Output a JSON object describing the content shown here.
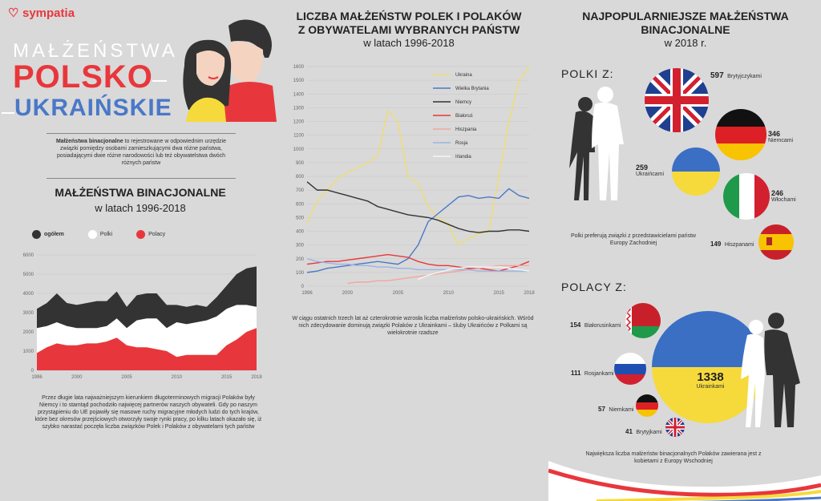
{
  "brand": {
    "name": "sympatia"
  },
  "header": {
    "line1": "MAŁŻEŃSTWA",
    "line2": "POLSKO",
    "line3": "UKRAIŃSKIE"
  },
  "definition": {
    "bold": "Małżeństwa binacjonalne",
    "rest": " to rejestrowane w odpowiednim urzędzie związki pomiędzy osobami zamieszkującymi dwa różne państwa, posiadającymi dwie różne narodowości lub też obywatelstwa dwóch różnych państw"
  },
  "left_section": {
    "title": "MAŁŻEŃSTWA BINACJONALNE",
    "subtitle": "w latach 1996-2018",
    "note": "Przez długie lata najważniejszym kierunkiem długoterminowych migracji Polaków były Niemcy i to stamtąd pochodziło najwięcej partnerów naszych obywateli. Gdy po naszym przystąpieniu do UE pojawiły się masowe ruchy migracyjne młodych ludzi do tych krajów, które bez okresów przejściowych otworzyły swoje rynki pracy, po kilku latach okazało się, iż szybko narastać poczęła liczba związków Polek i Polaków z obywatelami tych państw"
  },
  "middle_section": {
    "title1": "LICZBA MAŁŻEŃSTW POLEK I POLAKÓW",
    "title2": "Z OBYWATELAMI WYBRANYCH PAŃSTW",
    "subtitle": "w latach 1996-2018",
    "note": "W ciągu ostatnich trzech lat aż czterokrotnie wzrosła liczba małżeństw polsko-ukraińskich. Wśród nich zdecydowanie dominują związki Polaków z Ukrainkami – śluby Ukraińców z Polkami są wielokrotnie rzadsze"
  },
  "right_section": {
    "title1": "NAJPOPULARNIEJSZE MAŁŻEŃSTWA",
    "title2": "BINACJONALNE",
    "subtitle": "w 2018 r.",
    "polki_heading": "POLKI Z:",
    "polki_note": "Polki preferują związki z przedstawicielami państw Europy Zachodniej",
    "polacy_heading": "POLACY Z:",
    "polacy_note": "Największa liczba małżeństw binacjonalnych Polaków zawierana jest z kobietami z Europy Wschodniej",
    "polki": [
      {
        "value": "597",
        "label": "Brytyjczykami",
        "icon": "uk-flag-icon"
      },
      {
        "value": "346",
        "label": "Niemcami",
        "icon": "germany-flag-icon"
      },
      {
        "value": "259",
        "label": "Ukraińcami",
        "icon": "ukraine-flag-icon"
      },
      {
        "value": "246",
        "label": "Włochami",
        "icon": "italy-flag-icon"
      },
      {
        "value": "149",
        "label": "Hiszpanami",
        "icon": "spain-flag-icon"
      }
    ],
    "polacy": [
      {
        "value": "154",
        "label": "Białorusinkami",
        "icon": "belarus-flag-icon"
      },
      {
        "value": "111",
        "label": "Rosjankami",
        "icon": "russia-flag-icon"
      },
      {
        "value": "1338",
        "label": "Ukrainkami",
        "icon": "ukraine-flag-icon"
      },
      {
        "value": "57",
        "label": "Niemkami",
        "icon": "germany-flag-icon"
      },
      {
        "value": "41",
        "label": "Brytyjkami",
        "icon": "uk-flag-icon"
      }
    ]
  },
  "chart_data": [
    {
      "type": "area",
      "title": "MAŁŻEŃSTWA BINACJONALNE",
      "legend": [
        "ogółem",
        "Polki",
        "Polacy"
      ],
      "colors": {
        "ogółem": "#333333",
        "Polki": "#ffffff",
        "Polacy": "#e8373c"
      },
      "x": [
        1996,
        1997,
        1998,
        1999,
        2000,
        2001,
        2002,
        2003,
        2004,
        2005,
        2006,
        2007,
        2008,
        2009,
        2010,
        2011,
        2012,
        2013,
        2014,
        2015,
        2016,
        2017,
        2018
      ],
      "series": [
        {
          "name": "ogółem",
          "values": [
            3200,
            3500,
            4000,
            3500,
            3400,
            3500,
            3600,
            3600,
            4100,
            3300,
            3900,
            4000,
            4000,
            3400,
            3400,
            3300,
            3400,
            3300,
            3800,
            4400,
            5000,
            5300,
            5400
          ]
        },
        {
          "name": "Polki",
          "values": [
            2200,
            2300,
            2500,
            2300,
            2200,
            2200,
            2200,
            2300,
            2700,
            2200,
            2600,
            2700,
            2700,
            2200,
            2500,
            2400,
            2500,
            2600,
            2800,
            3200,
            3400,
            3400,
            3300
          ]
        },
        {
          "name": "Polacy",
          "values": [
            900,
            1200,
            1400,
            1300,
            1300,
            1400,
            1400,
            1500,
            1700,
            1300,
            1200,
            1200,
            1100,
            1000,
            700,
            800,
            800,
            800,
            800,
            1300,
            1600,
            2000,
            2200
          ]
        }
      ],
      "xticks": [
        1996,
        2000,
        2005,
        2010,
        2015,
        2018
      ],
      "yticks": [
        0,
        1000,
        2000,
        3000,
        4000,
        5000,
        6000
      ],
      "ylim": [
        0,
        6000
      ]
    },
    {
      "type": "line",
      "title": "LICZBA MAŁŻEŃSTW POLEK I POLAKÓW Z OBYWATELAMI WYBRANYCH PAŃSTW",
      "x": [
        1996,
        1997,
        1998,
        1999,
        2000,
        2001,
        2002,
        2003,
        2004,
        2005,
        2006,
        2007,
        2008,
        2009,
        2010,
        2011,
        2012,
        2013,
        2014,
        2015,
        2016,
        2017,
        2018
      ],
      "series": [
        {
          "name": "Ukraina",
          "color": "#f0dd70",
          "values": [
            460,
            620,
            700,
            780,
            830,
            860,
            900,
            950,
            1280,
            1200,
            800,
            750,
            580,
            500,
            450,
            300,
            350,
            380,
            400,
            800,
            1200,
            1500,
            1600
          ]
        },
        {
          "name": "Wielka Brytania",
          "color": "#4a78c8",
          "values": [
            100,
            110,
            130,
            140,
            150,
            160,
            170,
            180,
            170,
            160,
            200,
            300,
            470,
            530,
            590,
            650,
            660,
            640,
            650,
            640,
            710,
            660,
            640
          ]
        },
        {
          "name": "Niemcy",
          "color": "#333333",
          "values": [
            760,
            700,
            700,
            680,
            660,
            640,
            620,
            580,
            560,
            540,
            520,
            510,
            500,
            480,
            450,
            420,
            400,
            390,
            400,
            400,
            410,
            410,
            400
          ]
        },
        {
          "name": "Białoruś",
          "color": "#e8373c",
          "values": [
            160,
            170,
            180,
            180,
            190,
            200,
            210,
            220,
            230,
            220,
            210,
            180,
            160,
            150,
            150,
            140,
            130,
            130,
            120,
            110,
            130,
            150,
            180
          ]
        },
        {
          "name": "Hiszpania",
          "color": "#f2a6a0",
          "values": [
            null,
            null,
            null,
            null,
            20,
            30,
            30,
            40,
            40,
            50,
            60,
            70,
            80,
            90,
            100,
            110,
            120,
            130,
            140,
            150,
            150,
            150,
            150
          ]
        },
        {
          "name": "Rosja",
          "color": "#9ab4e0",
          "values": [
            200,
            180,
            170,
            160,
            160,
            150,
            150,
            140,
            140,
            130,
            130,
            120,
            120,
            120,
            120,
            120,
            120,
            110,
            110,
            110,
            110,
            110,
            110
          ]
        },
        {
          "name": "Irlandia",
          "color": "#f5f5f5",
          "values": [
            null,
            null,
            null,
            null,
            null,
            null,
            null,
            null,
            null,
            null,
            null,
            50,
            80,
            100,
            120,
            130,
            140,
            140,
            140,
            140,
            130,
            120,
            110
          ]
        }
      ],
      "xticks": [
        1996,
        2000,
        2005,
        2010,
        2015,
        2018
      ],
      "yticks": [
        0,
        100,
        200,
        300,
        400,
        500,
        600,
        700,
        800,
        900,
        1000,
        1100,
        1200,
        1300,
        1400,
        1500,
        1600
      ],
      "ylim": [
        0,
        1600
      ]
    }
  ]
}
